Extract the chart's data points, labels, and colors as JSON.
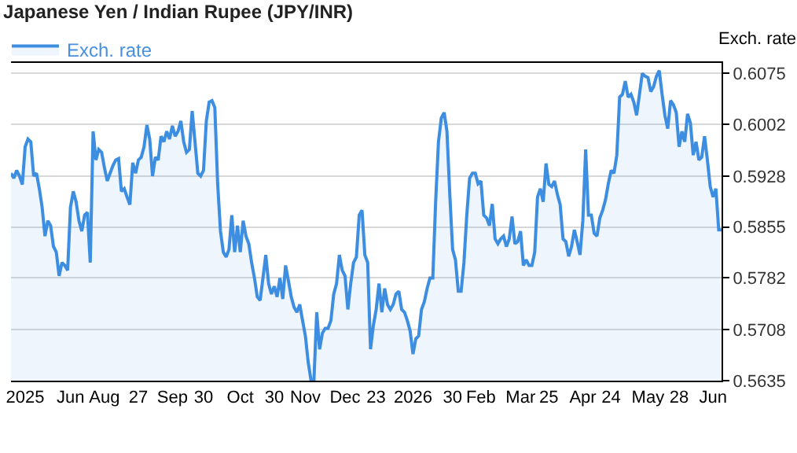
{
  "chart_data": {
    "type": "area",
    "title": "Japanese Yen / Indian Rupee (JPY/INR)",
    "ylabel": "Exch. rate",
    "legend": "top left",
    "grid": "y",
    "marker": "none",
    "line_style": "solid",
    "categories": [
      null,
      null,
      null,
      null,
      null,
      "2025",
      null,
      null,
      null,
      null,
      null,
      null,
      null,
      null,
      null,
      null,
      null,
      null,
      null,
      null,
      null,
      "Jun",
      null,
      null,
      null,
      null,
      null,
      null,
      null,
      null,
      null,
      null,
      null,
      "Aug",
      null,
      null,
      null,
      null,
      null,
      null,
      null,
      null,
      null,
      null,
      null,
      "27",
      null,
      null,
      null,
      null,
      null,
      null,
      null,
      null,
      null,
      null,
      null,
      "Sep",
      null,
      null,
      null,
      null,
      null,
      null,
      null,
      null,
      null,
      null,
      "30",
      null,
      null,
      null,
      null,
      null,
      null,
      null,
      null,
      null,
      null,
      null,
      null,
      "Oct",
      null,
      null,
      null,
      null,
      null,
      null,
      null,
      null,
      null,
      null,
      null,
      "30",
      null,
      null,
      null,
      null,
      null,
      null,
      null,
      null,
      null,
      null,
      "Nov",
      null,
      null,
      null,
      null,
      null,
      null,
      null,
      null,
      null,
      null,
      null,
      null,
      null,
      "Dec",
      null,
      null,
      null,
      null,
      null,
      null,
      null,
      null,
      null,
      null,
      "23",
      null,
      null,
      null,
      null,
      null,
      null,
      null,
      null,
      null,
      null,
      null,
      null,
      "2026",
      null,
      null,
      null,
      null,
      null,
      null,
      null,
      null,
      null,
      null,
      null,
      null,
      null,
      "30",
      null,
      null,
      null,
      null,
      null,
      null,
      null,
      null,
      null,
      "Feb",
      null,
      null,
      null,
      null,
      null,
      null,
      null,
      null,
      null,
      null,
      null,
      null,
      null,
      "Mar",
      null,
      null,
      null,
      null,
      null,
      null,
      null,
      null,
      null,
      "25",
      null,
      null,
      null,
      null,
      null,
      null,
      null,
      null,
      null,
      null,
      null,
      "Apr",
      null,
      null,
      null,
      null,
      null,
      null,
      null,
      null,
      null,
      "24",
      null,
      null,
      null,
      null,
      null,
      null,
      null,
      null,
      null,
      null,
      null,
      null,
      "May",
      null,
      null,
      null,
      null,
      null,
      null,
      null,
      null,
      null,
      null,
      "28",
      null,
      null,
      null,
      null,
      null,
      null,
      null,
      null,
      null,
      null,
      null,
      "Jun",
      null,
      null,
      null
    ],
    "ylim": [
      0.5635,
      0.609
    ],
    "yticks": [
      0.5635,
      0.5708,
      0.5782,
      0.5855,
      0.5928,
      0.6002,
      0.6075
    ],
    "series": [
      {
        "name": "Exch. rate",
        "color": "#3d8ee0",
        "values": [
          0.5932,
          0.5925,
          0.5936,
          0.5928,
          0.5916,
          0.597,
          0.5981,
          0.5977,
          0.5928,
          0.5932,
          0.591,
          0.5883,
          0.5842,
          0.5864,
          0.5857,
          0.5827,
          0.5819,
          0.5785,
          0.5804,
          0.58,
          0.5793,
          0.5883,
          0.5906,
          0.5891,
          0.5864,
          0.5849,
          0.5872,
          0.5876,
          0.5804,
          0.5992,
          0.5951,
          0.5966,
          0.5962,
          0.594,
          0.5921,
          0.5932,
          0.5943,
          0.5951,
          0.5953,
          0.5906,
          0.591,
          0.5898,
          0.5887,
          0.5947,
          0.5932,
          0.5951,
          0.5955,
          0.597,
          0.6001,
          0.5981,
          0.5928,
          0.5955,
          0.5951,
          0.5985,
          0.5977,
          0.5992,
          0.5981,
          0.6,
          0.5985,
          0.5992,
          0.6007,
          0.5977,
          0.5962,
          0.5966,
          0.6021,
          0.5977,
          0.5932,
          0.5928,
          0.5936,
          0.6007,
          0.6034,
          0.6036,
          0.6026,
          0.5917,
          0.5849,
          0.5819,
          0.5812,
          0.5823,
          0.5872,
          0.5819,
          0.5857,
          0.5819,
          0.5864,
          0.5842,
          0.5831,
          0.5804,
          0.5782,
          0.5755,
          0.575,
          0.5782,
          0.5815,
          0.5774,
          0.5759,
          0.577,
          0.5755,
          0.5782,
          0.5752,
          0.58,
          0.5778,
          0.5755,
          0.574,
          0.5733,
          0.5744,
          0.5721,
          0.5699,
          0.5661,
          0.5635,
          0.5635,
          0.5733,
          0.568,
          0.5703,
          0.571,
          0.571,
          0.5721,
          0.5759,
          0.5774,
          0.5815,
          0.5793,
          0.5785,
          0.5737,
          0.5774,
          0.5804,
          0.5812,
          0.5872,
          0.5879,
          0.5815,
          0.5804,
          0.568,
          0.5714,
          0.5737,
          0.5774,
          0.5733,
          0.5767,
          0.5744,
          0.5737,
          0.5744,
          0.5759,
          0.5763,
          0.5737,
          0.5733,
          0.5721,
          0.5706,
          0.5673,
          0.5695,
          0.5699,
          0.5737,
          0.5748,
          0.5767,
          0.5782,
          0.5782,
          0.5891,
          0.5977,
          0.6011,
          0.6019,
          0.5992,
          0.5902,
          0.5823,
          0.5808,
          0.5763,
          0.5763,
          0.5804,
          0.5872,
          0.5925,
          0.5932,
          0.5932,
          0.5917,
          0.5921,
          0.5872,
          0.5868,
          0.5857,
          0.5888,
          0.5838,
          0.5831,
          0.5838,
          0.5842,
          0.5827,
          0.5838,
          0.587,
          0.5831,
          0.5834,
          0.5849,
          0.58,
          0.5808,
          0.58,
          0.58,
          0.5819,
          0.5898,
          0.591,
          0.5891,
          0.5946,
          0.5916,
          0.5913,
          0.5921,
          0.5902,
          0.5887,
          0.5838,
          0.5834,
          0.5813,
          0.5827,
          0.5851,
          0.5834,
          0.5815,
          0.5864,
          0.5966,
          0.5872,
          0.5872,
          0.5846,
          0.5842,
          0.5868,
          0.5879,
          0.5894,
          0.5917,
          0.5936,
          0.5932,
          0.5958,
          0.6041,
          0.6045,
          0.6064,
          0.6041,
          0.6045,
          0.6034,
          0.6015,
          0.6045,
          0.6075,
          0.6071,
          0.6069,
          0.6049,
          0.6056,
          0.6071,
          0.6079,
          0.6045,
          0.6015,
          0.5996,
          0.6036,
          0.603,
          0.6019,
          0.597,
          0.5992,
          0.5977,
          0.6017,
          0.6004,
          0.5958,
          0.5977,
          0.5951,
          0.5955,
          0.5985,
          0.5951,
          0.5913,
          0.5898,
          0.591,
          0.5851,
          0.5851
        ]
      }
    ]
  }
}
